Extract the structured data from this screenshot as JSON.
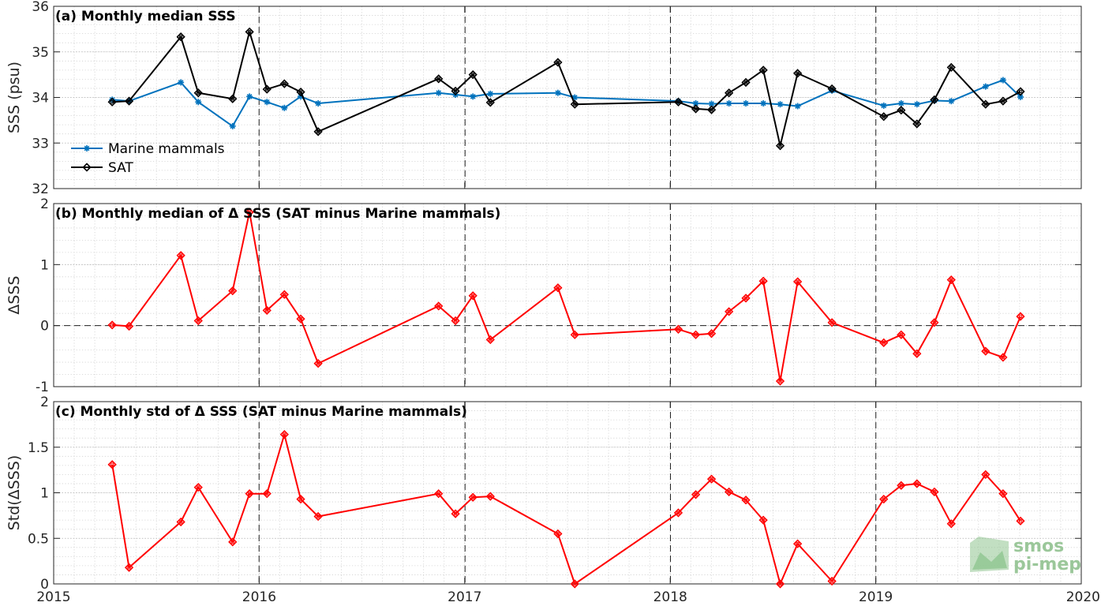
{
  "chart_data": [
    {
      "type": "line",
      "panel": "a",
      "title": "(a) Monthly median SSS",
      "ylabel": "SSS (psu)",
      "xlim": [
        "2015-01-01",
        "2020-01-01"
      ],
      "ylim": [
        32,
        36
      ],
      "yticks": [
        "32",
        "33",
        "34",
        "35",
        "36"
      ],
      "grid": true,
      "minor_grid": true,
      "legend_position": "left",
      "series": [
        {
          "name": "Marine mammals",
          "color": "#0072BD",
          "marker": "asterisk",
          "points": [
            [
              "2015-04-15",
              33.95
            ],
            [
              "2015-05-15",
              33.92
            ],
            [
              "2015-08-15",
              34.33
            ],
            [
              "2015-09-15",
              33.9
            ],
            [
              "2015-11-15",
              33.37
            ],
            [
              "2015-12-15",
              34.02
            ],
            [
              "2016-01-15",
              33.9
            ],
            [
              "2016-02-15",
              33.77
            ],
            [
              "2016-03-15",
              34.02
            ],
            [
              "2016-04-15",
              33.87
            ],
            [
              "2016-11-15",
              34.1
            ],
            [
              "2016-12-15",
              34.06
            ],
            [
              "2017-01-15",
              34.02
            ],
            [
              "2017-02-15",
              34.08
            ],
            [
              "2017-06-15",
              34.1
            ],
            [
              "2017-07-15",
              34.0
            ],
            [
              "2018-01-15",
              33.92
            ],
            [
              "2018-02-15",
              33.87
            ],
            [
              "2018-03-15",
              33.86
            ],
            [
              "2018-04-15",
              33.87
            ],
            [
              "2018-05-15",
              33.87
            ],
            [
              "2018-06-15",
              33.87
            ],
            [
              "2018-07-15",
              33.85
            ],
            [
              "2018-08-15",
              33.81
            ],
            [
              "2018-10-15",
              34.15
            ],
            [
              "2019-01-15",
              33.82
            ],
            [
              "2019-02-15",
              33.87
            ],
            [
              "2019-03-15",
              33.85
            ],
            [
              "2019-04-15",
              33.93
            ],
            [
              "2019-05-15",
              33.92
            ],
            [
              "2019-07-15",
              34.24
            ],
            [
              "2019-08-15",
              34.38
            ],
            [
              "2019-09-15",
              34.01
            ]
          ]
        },
        {
          "name": "SAT",
          "color": "#000000",
          "marker": "diamond",
          "points": [
            [
              "2015-04-15",
              33.9
            ],
            [
              "2015-05-15",
              33.92
            ],
            [
              "2015-08-15",
              35.33
            ],
            [
              "2015-09-15",
              34.1
            ],
            [
              "2015-11-15",
              33.97
            ],
            [
              "2015-12-15",
              35.44
            ],
            [
              "2016-01-15",
              34.18
            ],
            [
              "2016-02-15",
              34.3
            ],
            [
              "2016-03-15",
              34.12
            ],
            [
              "2016-04-15",
              33.25
            ],
            [
              "2016-11-15",
              34.41
            ],
            [
              "2016-12-15",
              34.14
            ],
            [
              "2017-01-15",
              34.5
            ],
            [
              "2017-02-15",
              33.89
            ],
            [
              "2017-06-15",
              34.77
            ],
            [
              "2017-07-15",
              33.85
            ],
            [
              "2018-01-15",
              33.9
            ],
            [
              "2018-02-15",
              33.75
            ],
            [
              "2018-03-15",
              33.73
            ],
            [
              "2018-04-15",
              34.1
            ],
            [
              "2018-05-15",
              34.33
            ],
            [
              "2018-06-15",
              34.6
            ],
            [
              "2018-07-15",
              32.94
            ],
            [
              "2018-08-15",
              34.53
            ],
            [
              "2018-10-15",
              34.19
            ],
            [
              "2019-01-15",
              33.58
            ],
            [
              "2019-02-15",
              33.72
            ],
            [
              "2019-03-15",
              33.42
            ],
            [
              "2019-04-15",
              33.95
            ],
            [
              "2019-05-15",
              34.66
            ],
            [
              "2019-07-15",
              33.85
            ],
            [
              "2019-08-15",
              33.92
            ],
            [
              "2019-09-15",
              34.13
            ]
          ]
        }
      ]
    },
    {
      "type": "line",
      "panel": "b",
      "title": "(b) Monthly median of Δ SSS (SAT minus Marine mammals)",
      "ylabel": "ΔSSS",
      "xlim": [
        "2015-01-01",
        "2020-01-01"
      ],
      "ylim": [
        -1,
        2
      ],
      "yticks": [
        "-1",
        "0",
        "1",
        "2"
      ],
      "zero_line": true,
      "grid": true,
      "minor_grid": true,
      "series": [
        {
          "name": "",
          "color": "#FF0000",
          "marker": "diamond",
          "points": [
            [
              "2015-04-15",
              0.01
            ],
            [
              "2015-05-15",
              -0.01
            ],
            [
              "2015-08-15",
              1.15
            ],
            [
              "2015-09-15",
              0.08
            ],
            [
              "2015-11-15",
              0.57
            ],
            [
              "2015-12-15",
              1.86
            ],
            [
              "2016-01-15",
              0.25
            ],
            [
              "2016-02-15",
              0.51
            ],
            [
              "2016-03-15",
              0.11
            ],
            [
              "2016-04-15",
              -0.62
            ],
            [
              "2016-11-15",
              0.32
            ],
            [
              "2016-12-15",
              0.08
            ],
            [
              "2017-01-15",
              0.49
            ],
            [
              "2017-02-15",
              -0.23
            ],
            [
              "2017-06-15",
              0.62
            ],
            [
              "2017-07-15",
              -0.15
            ],
            [
              "2018-01-15",
              -0.06
            ],
            [
              "2018-02-15",
              -0.15
            ],
            [
              "2018-03-15",
              -0.13
            ],
            [
              "2018-04-15",
              0.23
            ],
            [
              "2018-05-15",
              0.45
            ],
            [
              "2018-06-15",
              0.73
            ],
            [
              "2018-07-15",
              -0.91
            ],
            [
              "2018-08-15",
              0.72
            ],
            [
              "2018-10-15",
              0.05
            ],
            [
              "2019-01-15",
              -0.28
            ],
            [
              "2019-02-15",
              -0.15
            ],
            [
              "2019-03-15",
              -0.46
            ],
            [
              "2019-04-15",
              0.05
            ],
            [
              "2019-05-15",
              0.75
            ],
            [
              "2019-07-15",
              -0.42
            ],
            [
              "2019-08-15",
              -0.52
            ],
            [
              "2019-09-15",
              0.15
            ]
          ]
        }
      ]
    },
    {
      "type": "line",
      "panel": "c",
      "title": "(c) Monthly std of Δ SSS (SAT minus Marine mammals)",
      "ylabel": "Std(ΔSSS)",
      "xlabel": "",
      "xlim": [
        "2015-01-01",
        "2020-01-01"
      ],
      "xticks": [
        "2015",
        "2016",
        "2017",
        "2018",
        "2019",
        "2020"
      ],
      "ylim": [
        0,
        2
      ],
      "yticks": [
        "0",
        "0.5",
        "1",
        "1.5",
        "2"
      ],
      "grid": true,
      "minor_grid": true,
      "series": [
        {
          "name": "",
          "color": "#FF0000",
          "marker": "diamond",
          "points": [
            [
              "2015-04-15",
              1.31
            ],
            [
              "2015-05-15",
              0.18
            ],
            [
              "2015-08-15",
              0.68
            ],
            [
              "2015-09-15",
              1.06
            ],
            [
              "2015-11-15",
              0.46
            ],
            [
              "2015-12-15",
              0.99
            ],
            [
              "2016-01-15",
              0.99
            ],
            [
              "2016-02-15",
              1.64
            ],
            [
              "2016-03-15",
              0.93
            ],
            [
              "2016-04-15",
              0.74
            ],
            [
              "2016-11-15",
              0.99
            ],
            [
              "2016-12-15",
              0.77
            ],
            [
              "2017-01-15",
              0.95
            ],
            [
              "2017-02-15",
              0.96
            ],
            [
              "2017-06-15",
              0.55
            ],
            [
              "2017-07-15",
              0.0
            ],
            [
              "2018-01-15",
              0.78
            ],
            [
              "2018-02-15",
              0.98
            ],
            [
              "2018-03-15",
              1.15
            ],
            [
              "2018-04-15",
              1.01
            ],
            [
              "2018-05-15",
              0.92
            ],
            [
              "2018-06-15",
              0.7
            ],
            [
              "2018-07-15",
              0.0
            ],
            [
              "2018-08-15",
              0.44
            ],
            [
              "2018-10-15",
              0.03
            ],
            [
              "2019-01-15",
              0.93
            ],
            [
              "2019-02-15",
              1.08
            ],
            [
              "2019-03-15",
              1.1
            ],
            [
              "2019-04-15",
              1.01
            ],
            [
              "2019-05-15",
              0.66
            ],
            [
              "2019-07-15",
              1.2
            ],
            [
              "2019-08-15",
              0.99
            ],
            [
              "2019-09-15",
              0.69
            ]
          ]
        }
      ]
    }
  ],
  "year_separators": [
    "2016-01-01",
    "2017-01-01",
    "2018-01-01",
    "2019-01-01"
  ],
  "logo": {
    "line1": "smos",
    "line2": "pi-mep",
    "text_color": "#9bc79a",
    "icon_color": "#8fc590"
  }
}
